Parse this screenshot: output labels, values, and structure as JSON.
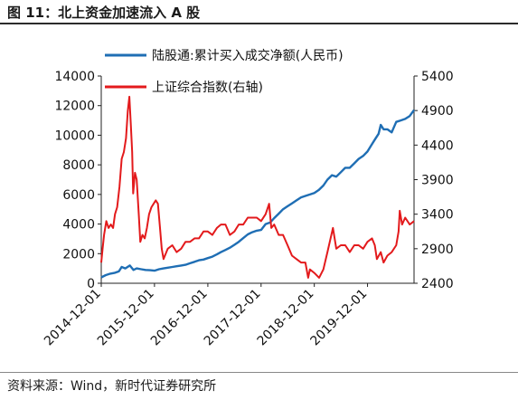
{
  "figure": {
    "title": "图 11：北上资金加速流入 A 股",
    "source": "资料来源：Wind，新时代证券研究所"
  },
  "chart_data": {
    "type": "line",
    "x_ticks": [
      "2014-12-01",
      "2015-12-01",
      "2016-12-01",
      "2017-12-01",
      "2018-12-01",
      "2019-12-01"
    ],
    "xlim": [
      "2014-12-01",
      "2020-10-15"
    ],
    "y_left": {
      "ticks": [
        "0",
        "2000",
        "4000",
        "6000",
        "8000",
        "10000",
        "12000",
        "14000"
      ],
      "ylim": [
        0,
        14000
      ]
    },
    "y_right": {
      "ticks": [
        "2400",
        "2900",
        "3400",
        "3900",
        "4400",
        "4900",
        "5400"
      ],
      "ylim": [
        2400,
        5400
      ]
    },
    "legend_position": "top",
    "series": [
      {
        "name": "陆股通:累计买入成交净额(人民币)",
        "axis": "left",
        "color": "#1f6eb4",
        "x": [
          "2014-12-01",
          "2015-01-01",
          "2015-02-01",
          "2015-03-01",
          "2015-04-01",
          "2015-04-20",
          "2015-05-15",
          "2015-06-15",
          "2015-07-10",
          "2015-08-01",
          "2015-09-01",
          "2015-10-01",
          "2015-11-01",
          "2015-12-01",
          "2016-01-01",
          "2016-02-01",
          "2016-03-01",
          "2016-04-01",
          "2016-05-01",
          "2016-06-01",
          "2016-07-01",
          "2016-08-01",
          "2016-09-01",
          "2016-10-01",
          "2016-11-01",
          "2016-12-01",
          "2017-01-01",
          "2017-02-01",
          "2017-03-01",
          "2017-04-01",
          "2017-05-01",
          "2017-06-01",
          "2017-07-01",
          "2017-08-01",
          "2017-09-01",
          "2017-10-01",
          "2017-11-01",
          "2017-12-01",
          "2018-01-01",
          "2018-02-01",
          "2018-03-01",
          "2018-04-01",
          "2018-05-01",
          "2018-06-01",
          "2018-07-01",
          "2018-08-01",
          "2018-09-01",
          "2018-10-01",
          "2018-11-01",
          "2018-12-01",
          "2019-01-01",
          "2019-02-01",
          "2019-03-01",
          "2019-04-01",
          "2019-05-01",
          "2019-06-01",
          "2019-07-01",
          "2019-08-01",
          "2019-09-01",
          "2019-10-01",
          "2019-11-01",
          "2019-12-01",
          "2020-01-01",
          "2020-01-20",
          "2020-02-15",
          "2020-03-01",
          "2020-03-20",
          "2020-04-15",
          "2020-05-15",
          "2020-06-15",
          "2020-07-15",
          "2020-08-15",
          "2020-09-15",
          "2020-10-15"
        ],
        "values": [
          400,
          550,
          650,
          700,
          800,
          1100,
          1000,
          1200,
          900,
          1000,
          950,
          900,
          880,
          850,
          950,
          1000,
          1050,
          1100,
          1150,
          1200,
          1250,
          1350,
          1450,
          1550,
          1600,
          1700,
          1800,
          1950,
          2100,
          2250,
          2400,
          2600,
          2800,
          3050,
          3300,
          3450,
          3550,
          3600,
          4000,
          4100,
          4400,
          4700,
          5000,
          5200,
          5400,
          5600,
          5800,
          5900,
          6000,
          6100,
          6300,
          6600,
          7000,
          7300,
          7200,
          7500,
          7800,
          7800,
          8100,
          8400,
          8600,
          8900,
          9400,
          9700,
          10100,
          10700,
          10400,
          10400,
          10200,
          10900,
          11000,
          11100,
          11300,
          11700
        ]
      },
      {
        "name": "上证综合指数(右轴)",
        "axis": "right",
        "color": "#e31a1c",
        "x": [
          "2014-12-01",
          "2014-12-10",
          "2014-12-20",
          "2015-01-05",
          "2015-01-20",
          "2015-02-05",
          "2015-02-20",
          "2015-03-05",
          "2015-03-20",
          "2015-04-05",
          "2015-04-20",
          "2015-05-05",
          "2015-05-20",
          "2015-06-01",
          "2015-06-12",
          "2015-06-22",
          "2015-07-01",
          "2015-07-08",
          "2015-07-20",
          "2015-08-01",
          "2015-08-15",
          "2015-08-26",
          "2015-09-10",
          "2015-09-25",
          "2015-10-10",
          "2015-10-25",
          "2015-11-10",
          "2015-11-25",
          "2015-12-10",
          "2015-12-25",
          "2016-01-08",
          "2016-01-20",
          "2016-02-01",
          "2016-03-01",
          "2016-04-01",
          "2016-05-01",
          "2016-06-01",
          "2016-07-01",
          "2016-08-01",
          "2016-09-01",
          "2016-10-01",
          "2016-11-01",
          "2016-12-01",
          "2017-01-01",
          "2017-02-01",
          "2017-03-01",
          "2017-04-01",
          "2017-05-01",
          "2017-06-01",
          "2017-07-01",
          "2017-08-01",
          "2017-09-01",
          "2017-10-01",
          "2017-11-01",
          "2017-12-01",
          "2018-01-01",
          "2018-01-25",
          "2018-02-09",
          "2018-03-01",
          "2018-04-01",
          "2018-05-01",
          "2018-06-01",
          "2018-07-01",
          "2018-08-01",
          "2018-09-01",
          "2018-10-01",
          "2018-10-20",
          "2018-11-01",
          "2018-12-01",
          "2019-01-03",
          "2019-02-01",
          "2019-03-01",
          "2019-04-08",
          "2019-05-01",
          "2019-06-01",
          "2019-07-01",
          "2019-08-01",
          "2019-09-01",
          "2019-10-01",
          "2019-11-01",
          "2019-12-01",
          "2020-01-01",
          "2020-01-20",
          "2020-02-03",
          "2020-03-01",
          "2020-03-20",
          "2020-04-15",
          "2020-05-15",
          "2020-06-15",
          "2020-07-01",
          "2020-07-09",
          "2020-07-25",
          "2020-08-15",
          "2020-09-15",
          "2020-10-15"
        ],
        "values": [
          2700,
          2900,
          3100,
          3300,
          3200,
          3250,
          3200,
          3400,
          3500,
          3800,
          4200,
          4300,
          4500,
          4900,
          5100,
          4700,
          4300,
          3700,
          4000,
          3900,
          3400,
          3000,
          3100,
          3050,
          3200,
          3400,
          3500,
          3550,
          3600,
          3550,
          3200,
          2900,
          2750,
          2900,
          2950,
          2850,
          2900,
          3000,
          3000,
          3050,
          3050,
          3150,
          3150,
          3100,
          3200,
          3250,
          3250,
          3100,
          3150,
          3250,
          3250,
          3350,
          3350,
          3350,
          3300,
          3400,
          3550,
          3200,
          3250,
          3100,
          3100,
          2950,
          2800,
          2750,
          2700,
          2700,
          2480,
          2600,
          2550,
          2480,
          2600,
          2850,
          3200,
          2900,
          2950,
          2950,
          2850,
          2950,
          2950,
          2900,
          3000,
          3050,
          2950,
          2750,
          2850,
          2700,
          2800,
          2850,
          2950,
          3150,
          3450,
          3250,
          3350,
          3250,
          3300
        ]
      }
    ]
  }
}
